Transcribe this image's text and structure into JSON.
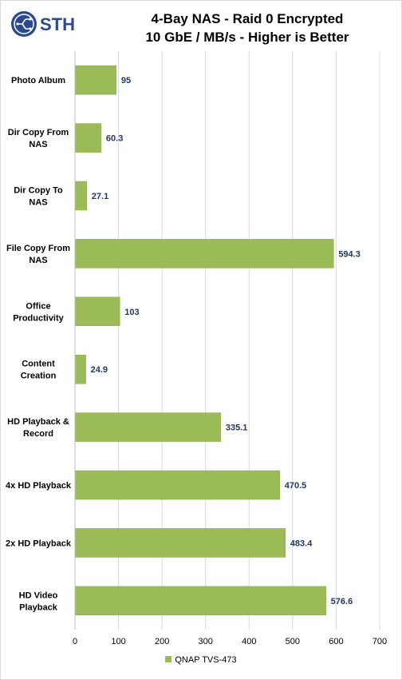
{
  "logo": {
    "text": "STH",
    "icon": "sth-gear-logo-icon"
  },
  "title_line1": "4-Bay NAS - Raid 0 Encrypted",
  "title_line2": "10 GbE / MB/s - Higher is Better",
  "colors": {
    "bar": "#9bbb59",
    "bar_edge": "#8aab4a",
    "grid": "#d9d9d9",
    "value_label": "#1f3864"
  },
  "chart_data": {
    "type": "bar",
    "orientation": "horizontal",
    "title": "4-Bay NAS - Raid 0 Encrypted 10 GbE / MB/s - Higher is Better",
    "categories": [
      [
        "Photo Album"
      ],
      [
        "Dir Copy From",
        "NAS"
      ],
      [
        "Dir Copy To",
        "NAS"
      ],
      [
        "File Copy From",
        "NAS"
      ],
      [
        "Office",
        "Productivity"
      ],
      [
        "Content",
        "Creation"
      ],
      [
        "HD Playback &",
        "Record"
      ],
      [
        "4x HD Playback"
      ],
      [
        "2x HD Playback"
      ],
      [
        "HD Video",
        "Playback"
      ]
    ],
    "series": [
      {
        "name": "QNAP TVS-473",
        "values": [
          95,
          60.3,
          27.1,
          594.3,
          103,
          24.9,
          335.1,
          470.5,
          483.4,
          576.6
        ]
      }
    ],
    "value_labels": [
      "95",
      "60.3",
      "27.1",
      "594.3",
      "103",
      "24.9",
      "335.1",
      "470.5",
      "483.4",
      "576.6"
    ],
    "xlim": [
      0,
      700
    ],
    "xticks": [
      0,
      100,
      200,
      300,
      400,
      500,
      600,
      700
    ],
    "xtick_labels": [
      "0",
      "100",
      "200",
      "300",
      "400",
      "500",
      "600",
      "700"
    ],
    "grid": true,
    "legend": "bottom"
  }
}
